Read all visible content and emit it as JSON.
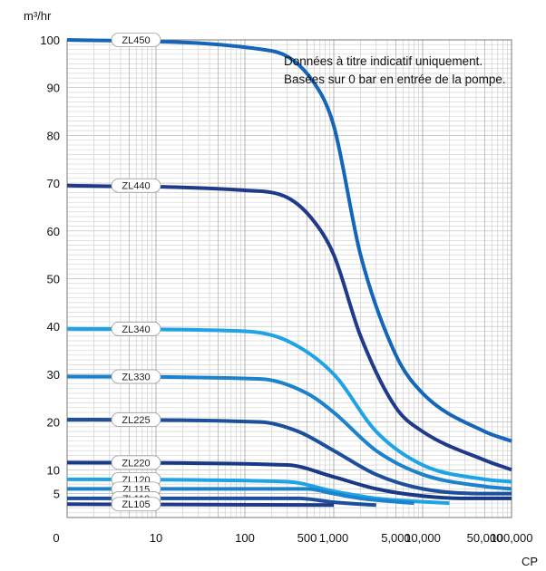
{
  "chart_data": {
    "type": "line",
    "ylabel": "m³/hr",
    "xlabel": "CP",
    "y_ticks": [
      {
        "label": "100",
        "value": 100
      },
      {
        "label": "90",
        "value": 90
      },
      {
        "label": "80",
        "value": 80
      },
      {
        "label": "70",
        "value": 70
      },
      {
        "label": "60",
        "value": 60
      },
      {
        "label": "50",
        "value": 50
      },
      {
        "label": "40",
        "value": 40
      },
      {
        "label": "30",
        "value": 30
      },
      {
        "label": "20",
        "value": 20
      },
      {
        "label": "10",
        "value": 10
      },
      {
        "label": "5",
        "value": 5
      }
    ],
    "x_ticks": [
      {
        "label": "0",
        "value": 1
      },
      {
        "label": "10",
        "value": 10
      },
      {
        "label": "100",
        "value": 100
      },
      {
        "label": "500",
        "value": 500
      },
      {
        "label": "1,000",
        "value": 1000
      },
      {
        "label": "5,000",
        "value": 5000
      },
      {
        "label": "10,000",
        "value": 10000
      },
      {
        "label": "50,000",
        "value": 50000
      },
      {
        "label": "100,000",
        "value": 100000
      }
    ],
    "x_scale": "log",
    "xlim": [
      1,
      100000
    ],
    "ylim": [
      0,
      100
    ],
    "grid": true,
    "annotation": [
      "Données à titre indicatif uniquement.",
      "Basées sur 0 bar en entrée de la pompe."
    ],
    "series": [
      {
        "name": "ZL450",
        "color": "#1565b8",
        "points": [
          [
            1,
            100
          ],
          [
            200,
            97.7
          ],
          [
            600,
            91
          ],
          [
            1000,
            82
          ],
          [
            2000,
            55
          ],
          [
            5000,
            34
          ],
          [
            10000,
            26
          ],
          [
            50000,
            18
          ],
          [
            100000,
            16
          ]
        ]
      },
      {
        "name": "ZL440",
        "color": "#1f3a8a",
        "points": [
          [
            1,
            69.5
          ],
          [
            100,
            68.5
          ],
          [
            300,
            67
          ],
          [
            600,
            62
          ],
          [
            1000,
            55
          ],
          [
            2000,
            38
          ],
          [
            5000,
            23
          ],
          [
            10000,
            18
          ],
          [
            50000,
            12
          ],
          [
            100000,
            10
          ]
        ]
      },
      {
        "name": "ZL340",
        "color": "#1ea4e6",
        "points": [
          [
            1,
            39.5
          ],
          [
            100,
            39
          ],
          [
            300,
            37
          ],
          [
            1000,
            30
          ],
          [
            3000,
            18
          ],
          [
            10000,
            11
          ],
          [
            50000,
            8
          ],
          [
            100000,
            7.5
          ]
        ]
      },
      {
        "name": "ZL330",
        "color": "#1c82cc",
        "points": [
          [
            1,
            29.5
          ],
          [
            150,
            29
          ],
          [
            500,
            26
          ],
          [
            1000,
            22
          ],
          [
            3000,
            14
          ],
          [
            10000,
            9
          ],
          [
            50000,
            6.5
          ],
          [
            100000,
            6
          ]
        ]
      },
      {
        "name": "ZL225",
        "color": "#1c4f9c",
        "points": [
          [
            1,
            20.5
          ],
          [
            150,
            20
          ],
          [
            400,
            18
          ],
          [
            1000,
            14
          ],
          [
            3000,
            9
          ],
          [
            10000,
            6
          ],
          [
            50000,
            5
          ],
          [
            100000,
            5
          ]
        ]
      },
      {
        "name": "ZL220",
        "color": "#183a86",
        "points": [
          [
            1,
            11.5
          ],
          [
            300,
            11
          ],
          [
            1000,
            8.5
          ],
          [
            3000,
            6
          ],
          [
            10000,
            4.5
          ],
          [
            30000,
            4
          ],
          [
            100000,
            4
          ]
        ]
      },
      {
        "name": "ZL120",
        "color": "#1ea4e6",
        "points": [
          [
            1,
            8
          ],
          [
            300,
            7.5
          ],
          [
            1000,
            5.5
          ],
          [
            3000,
            4
          ],
          [
            10000,
            3.3
          ],
          [
            20000,
            3
          ]
        ]
      },
      {
        "name": "ZL115",
        "color": "#1c82cc",
        "points": [
          [
            1,
            6
          ],
          [
            500,
            6
          ],
          [
            1000,
            5
          ],
          [
            2000,
            4
          ],
          [
            5000,
            3.3
          ],
          [
            8000,
            3
          ]
        ]
      },
      {
        "name": "ZL110",
        "color": "#1c4f9c",
        "points": [
          [
            1,
            4
          ],
          [
            400,
            4
          ],
          [
            1000,
            3.2
          ],
          [
            2000,
            2.8
          ],
          [
            3000,
            2.6
          ]
        ]
      },
      {
        "name": "ZL105",
        "color": "#1f3a8a",
        "points": [
          [
            1,
            2.8
          ],
          [
            1000,
            2.6
          ]
        ]
      }
    ]
  }
}
